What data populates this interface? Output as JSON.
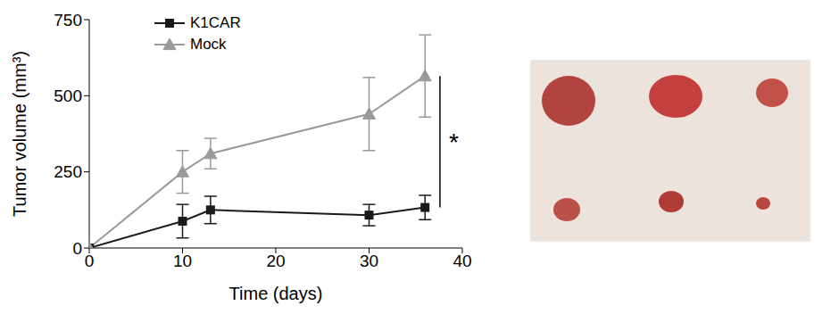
{
  "chart_data": {
    "type": "line",
    "x_label": "Time (days)",
    "y_label": "Tumor volume (mm³)",
    "x": [
      0,
      10,
      13,
      30,
      36
    ],
    "series": [
      {
        "name": "K1CAR",
        "color": "#1a1a1a",
        "marker": "square",
        "values": [
          0,
          88,
          125,
          108,
          133
        ],
        "errors": [
          0,
          55,
          45,
          35,
          40
        ]
      },
      {
        "name": "Mock",
        "color": "#9a9a9a",
        "marker": "triangle",
        "values": [
          0,
          250,
          310,
          440,
          565
        ],
        "errors": [
          0,
          70,
          50,
          120,
          135
        ]
      }
    ],
    "xlim": [
      0,
      40
    ],
    "xticks": [
      0,
      10,
      20,
      30,
      40
    ],
    "ylim": [
      0,
      750
    ],
    "yticks": [
      0,
      250,
      500,
      750
    ],
    "grid": false,
    "annotations": [
      "*"
    ]
  }
}
